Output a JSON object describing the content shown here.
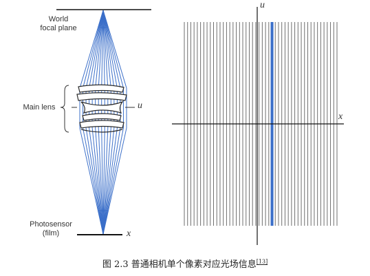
{
  "left_diagram": {
    "world_label_line1": "World",
    "world_label_line2": "focal plane",
    "lens_label": "Main lens",
    "lens_axis": "u",
    "sensor_label_line1": "Photosensor",
    "sensor_label_line2": "(film)",
    "sensor_axis": "x",
    "ray_count": 16,
    "ray_color": "#3b6fc9"
  },
  "right_diagram": {
    "u_axis": "u",
    "x_axis": "x",
    "line_count": 48,
    "highlight_index": 27,
    "line_color": "#6e6e6e",
    "highlight_color": "#3b6fc9"
  },
  "caption": {
    "text": "图 2.3  普通相机单个像素对应光场信息",
    "ref": "[13]"
  }
}
